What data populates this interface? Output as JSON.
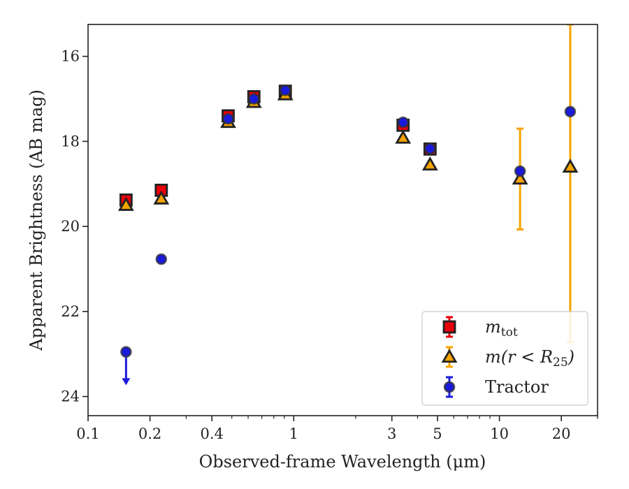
{
  "chart_data": {
    "type": "scatter",
    "title": "",
    "xlabel": "Observed-frame Wavelength (μm)",
    "ylabel": "Apparent Brightness (AB mag)",
    "xscale": "log",
    "xlim": [
      0.1,
      30
    ],
    "ylim": [
      24.45,
      15.25
    ],
    "y_inverted": true,
    "grid": false,
    "legend_loc": "lower right",
    "x_ticks": [
      {
        "value": 0.1,
        "label": "0.1"
      },
      {
        "value": 0.2,
        "label": "0.2"
      },
      {
        "value": 0.4,
        "label": "0.4"
      },
      {
        "value": 1,
        "label": "1"
      },
      {
        "value": 3,
        "label": "3"
      },
      {
        "value": 5,
        "label": "5"
      },
      {
        "value": 10,
        "label": "10"
      },
      {
        "value": 20,
        "label": "20"
      }
    ],
    "y_ticks": [
      {
        "value": 16,
        "label": "16"
      },
      {
        "value": 18,
        "label": "18"
      },
      {
        "value": 20,
        "label": "20"
      },
      {
        "value": 22,
        "label": "22"
      },
      {
        "value": 24,
        "label": "24"
      }
    ],
    "series": [
      {
        "name": "m_tot",
        "legend_main": "m",
        "legend_sub": "tot",
        "marker": "square",
        "color": "#e8000b",
        "error_color": "#e8000b",
        "points": [
          {
            "x": 0.153,
            "y": 19.38,
            "yerr": 0.05
          },
          {
            "x": 0.227,
            "y": 19.15,
            "yerr": 0.05
          },
          {
            "x": 0.48,
            "y": 17.4
          },
          {
            "x": 0.64,
            "y": 16.95
          },
          {
            "x": 0.91,
            "y": 16.82
          },
          {
            "x": 3.4,
            "y": 17.62
          },
          {
            "x": 4.6,
            "y": 18.18
          }
        ]
      },
      {
        "name": "m(r < R_25)",
        "legend_main": "m(r < R",
        "legend_sub": "25",
        "legend_tail": ")",
        "marker": "triangle",
        "color": "#f5a300",
        "error_color": "#f5a300",
        "points": [
          {
            "x": 0.153,
            "y": 19.5
          },
          {
            "x": 0.227,
            "y": 19.35
          },
          {
            "x": 0.48,
            "y": 17.55
          },
          {
            "x": 0.64,
            "y": 17.08
          },
          {
            "x": 0.91,
            "y": 16.9
          },
          {
            "x": 3.4,
            "y": 17.92
          },
          {
            "x": 4.6,
            "y": 18.55
          },
          {
            "x": 12.6,
            "y": 18.88,
            "yerr_low": 17.7,
            "yerr_high": 20.07
          },
          {
            "x": 22.1,
            "y": 18.6,
            "yerr_low": 15.25,
            "yerr_high": 22.72
          }
        ]
      },
      {
        "name": "Tractor",
        "marker": "circle",
        "color": "#1a1adb",
        "error_color": "#1a1adb",
        "points": [
          {
            "x": 0.153,
            "y": 22.95,
            "upper_limit": true
          },
          {
            "x": 0.227,
            "y": 20.77
          },
          {
            "x": 0.48,
            "y": 17.47
          },
          {
            "x": 0.64,
            "y": 17.0
          },
          {
            "x": 0.91,
            "y": 16.8
          },
          {
            "x": 3.4,
            "y": 17.55
          },
          {
            "x": 4.6,
            "y": 18.17
          },
          {
            "x": 12.6,
            "y": 18.7
          },
          {
            "x": 22.1,
            "y": 17.3
          }
        ]
      }
    ]
  }
}
